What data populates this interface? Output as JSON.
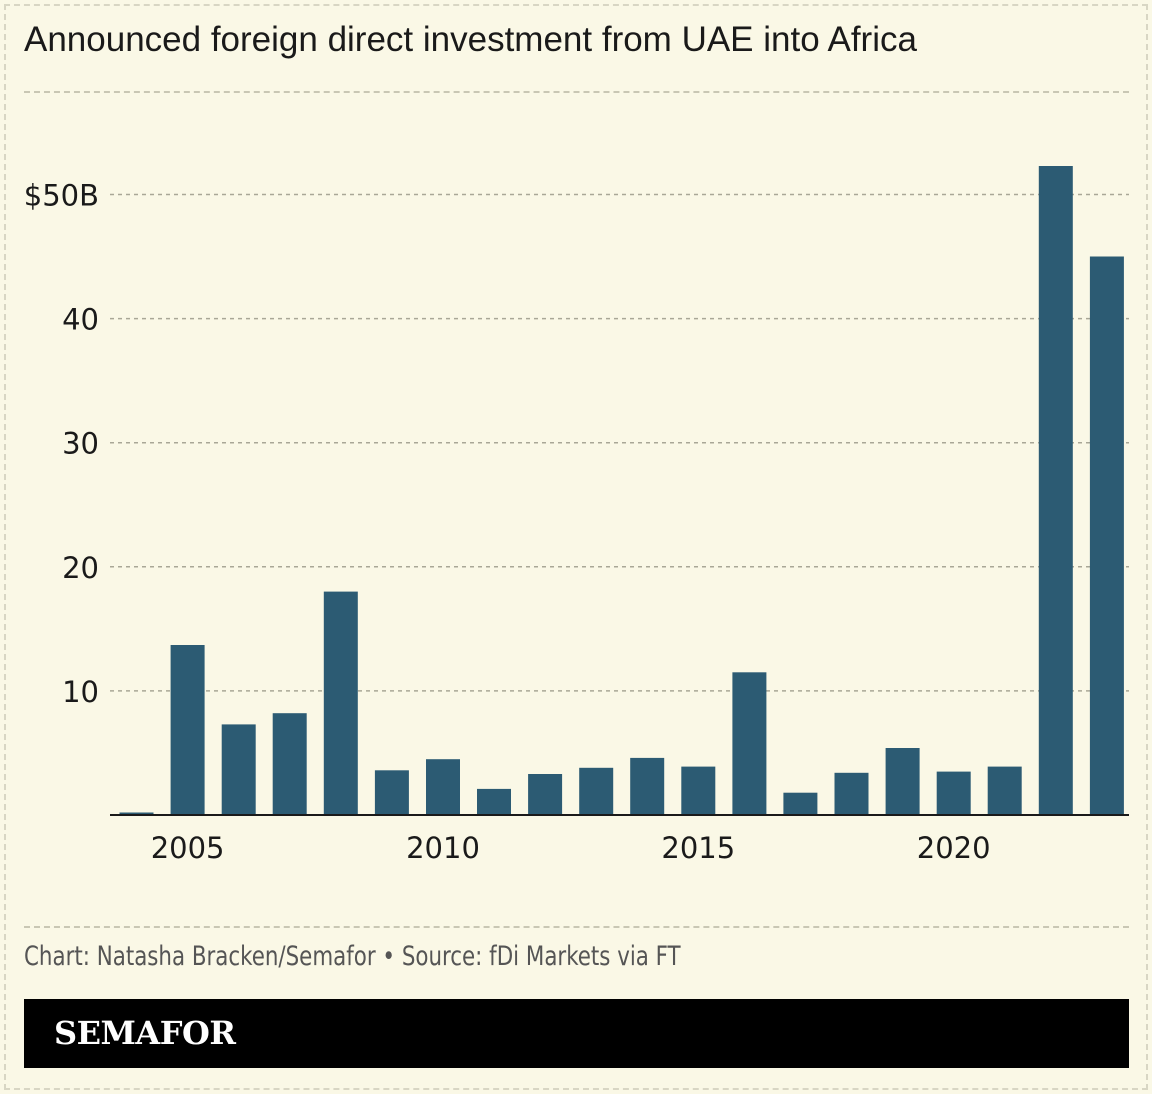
{
  "title": "Announced foreign direct investment from UAE into Africa",
  "source_line": "Chart: Natasha Bracken/Semafor • Source: fDi Markets via FT",
  "brand": "SEMAFOR",
  "colors": {
    "background": "#faf8e6",
    "bar": "#2c5b73",
    "footer": "#000000"
  },
  "chart_data": {
    "type": "bar",
    "categories": [
      "2004",
      "2005",
      "2006",
      "2007",
      "2008",
      "2009",
      "2010",
      "2011",
      "2012",
      "2013",
      "2014",
      "2015",
      "2016",
      "2017",
      "2018",
      "2019",
      "2020",
      "2021",
      "2022",
      "2023"
    ],
    "values": [
      0.2,
      13.7,
      7.3,
      8.2,
      18.0,
      3.6,
      4.5,
      2.1,
      3.3,
      3.8,
      4.6,
      3.9,
      11.5,
      1.8,
      3.4,
      5.4,
      3.5,
      3.9,
      52.3,
      45.0
    ],
    "x_tick_labels": [
      "2005",
      "2010",
      "2015",
      "2020"
    ],
    "y_tick_labels": [
      "10",
      "20",
      "30",
      "40",
      "$50B"
    ],
    "y_ticks": [
      10,
      20,
      30,
      40,
      50
    ],
    "ylim": [
      0,
      58
    ],
    "grid": true,
    "xlabel": "",
    "ylabel": ""
  }
}
